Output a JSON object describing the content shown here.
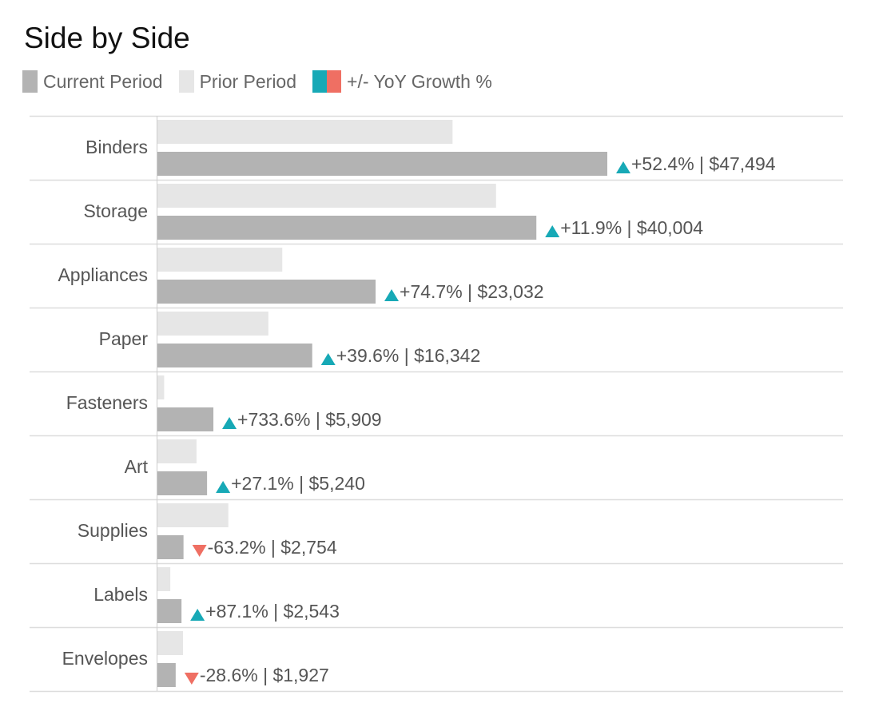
{
  "title": "Side by Side",
  "legend": {
    "current_label": "Current Period",
    "prior_label": "Prior Period",
    "growth_label": "+/- YoY Growth %"
  },
  "colors": {
    "current": "#b3b3b3",
    "prior": "#e6e6e6",
    "growth_up": "#17a9b6",
    "growth_down": "#ef6f63",
    "row_divider": "#dddddd",
    "axis_line": "#cccccc",
    "category_text": "#555555",
    "value_text": "#555555"
  },
  "chart_data": {
    "type": "bar",
    "orientation": "horizontal",
    "categories": [
      "Binders",
      "Storage",
      "Appliances",
      "Paper",
      "Fasteners",
      "Art",
      "Supplies",
      "Labels",
      "Envelopes"
    ],
    "series": [
      {
        "name": "Prior Period",
        "values": [
          31160,
          35750,
          13180,
          11710,
          709,
          4124,
          7485,
          1359,
          2699
        ]
      },
      {
        "name": "Current Period",
        "values": [
          47494,
          40004,
          23032,
          16342,
          5909,
          5240,
          2754,
          2543,
          1927
        ]
      }
    ],
    "growth_direction": [
      "up",
      "up",
      "up",
      "up",
      "up",
      "up",
      "down",
      "up",
      "down"
    ],
    "data_labels": [
      "+52.4% | $47,494",
      "+11.9% | $40,004",
      "+74.7% | $23,032",
      "+39.6% | $16,342",
      "+733.6% | $5,909",
      "+27.1% | $5,240",
      "-63.2% | $2,754",
      "+87.1% | $2,543",
      "-28.6% | $1,927"
    ],
    "grid": false,
    "legend_position": "top-left"
  }
}
